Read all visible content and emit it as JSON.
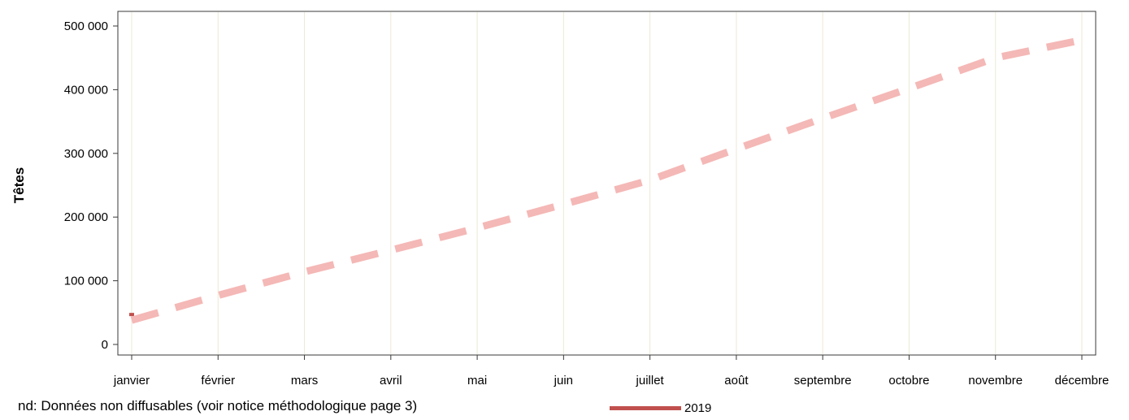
{
  "chart_data": {
    "type": "line",
    "ylabel": "Têtes",
    "xlabel": "",
    "ylim": [
      0,
      500000
    ],
    "yticks": [
      0,
      100000,
      200000,
      300000,
      400000,
      500000
    ],
    "ytick_labels": [
      "0",
      "100 000",
      "200 000",
      "300 000",
      "400 000",
      "500 000"
    ],
    "categories": [
      "janvier",
      "février",
      "mars",
      "avril",
      "mai",
      "juin",
      "juillet",
      "août",
      "septembre",
      "octobre",
      "novembre",
      "décembre"
    ],
    "grid": "vertical",
    "series": [
      {
        "name": "2019",
        "style": "solid",
        "color": "#c0504d",
        "values": [
          47000,
          null,
          null,
          null,
          null,
          null,
          null,
          null,
          null,
          null,
          null,
          null
        ]
      },
      {
        "name": "",
        "style": "dashed",
        "color": "#f4b8b6",
        "values": [
          38000,
          77000,
          114000,
          148000,
          183000,
          220000,
          258000,
          307000,
          355000,
          402000,
          450000,
          478000
        ]
      }
    ],
    "legend": {
      "position": "bottom",
      "label": "2019",
      "color": "#c0504d"
    }
  },
  "footnote": "nd: Données non diffusables (voir notice méthodologique page 3)"
}
